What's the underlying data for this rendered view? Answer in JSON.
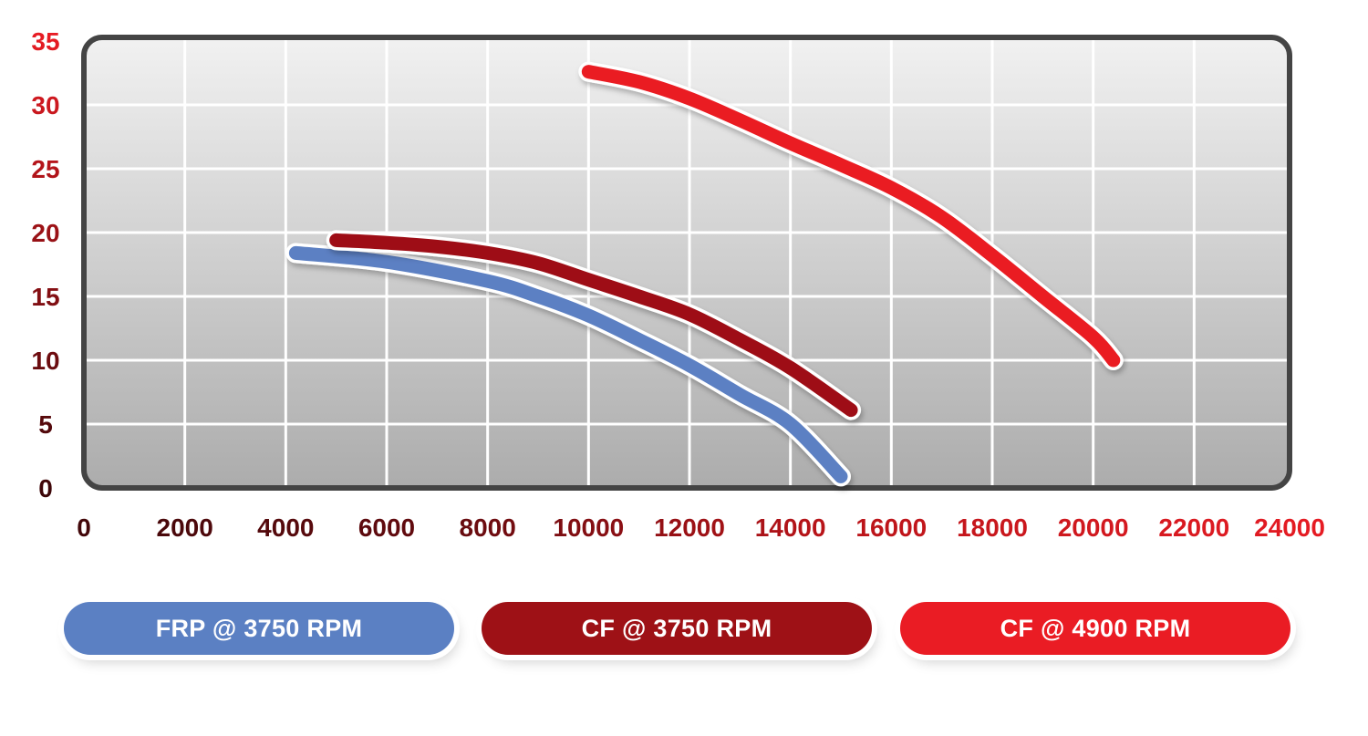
{
  "chart_data": {
    "type": "line",
    "title": "",
    "xlabel": "",
    "ylabel": "",
    "xlim": [
      0,
      24000
    ],
    "ylim": [
      0,
      35
    ],
    "grid": true,
    "x_ticks": [
      "0",
      "2000",
      "4000",
      "6000",
      "8000",
      "10000",
      "12000",
      "14000",
      "16000",
      "18000",
      "20000",
      "22000",
      "24000"
    ],
    "y_ticks": [
      "0",
      "5",
      "10",
      "15",
      "20",
      "25",
      "30",
      "35"
    ],
    "legend_position": "bottom",
    "series": [
      {
        "name": "FRP @ 3750 RPM",
        "color": "#5b80c3",
        "x": [
          4200,
          6000,
          8000,
          9000,
          10000,
          11000,
          12000,
          13000,
          14000,
          15000
        ],
        "y": [
          18.4,
          17.7,
          16.2,
          15.0,
          13.5,
          11.6,
          9.6,
          7.3,
          5.0,
          0.9
        ]
      },
      {
        "name": "CF @ 3750 RPM",
        "color": "#9e1116",
        "x": [
          5000,
          6000,
          7000,
          8000,
          9000,
          10000,
          11000,
          12000,
          13000,
          14000,
          15200
        ],
        "y": [
          19.4,
          19.2,
          18.9,
          18.4,
          17.6,
          16.3,
          15.0,
          13.6,
          11.6,
          9.4,
          6.1
        ]
      },
      {
        "name": "CF @ 4900 RPM",
        "color": "#ea1c24",
        "x": [
          10000,
          11000,
          12000,
          13000,
          14000,
          15000,
          16000,
          17000,
          18000,
          19000,
          20000,
          20400
        ],
        "y": [
          32.6,
          31.8,
          30.5,
          28.8,
          27.0,
          25.3,
          23.5,
          21.2,
          18.2,
          15.0,
          11.8,
          10.0
        ]
      }
    ]
  },
  "colors": {
    "tick_dark": "#3a0608",
    "tick_red": "#e31b23",
    "plot_border": "#444444"
  }
}
